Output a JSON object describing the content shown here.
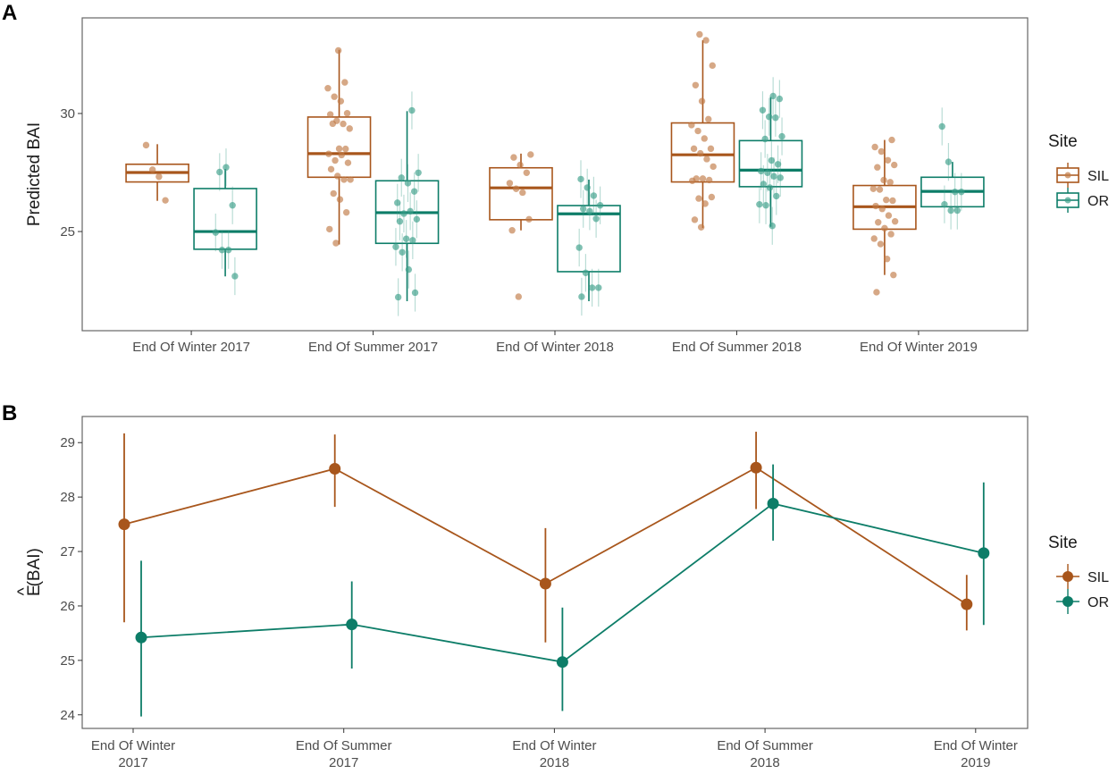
{
  "colors": {
    "SIL": "#a8561c",
    "OR": "#0d7d68",
    "SIL_point": "#c07a45",
    "OR_point": "#3a9e88"
  },
  "chart_data": [
    {
      "panel_label": "A",
      "type": "boxplot",
      "ylabel": "Predicted BAI",
      "xlabel": "",
      "ylim": [
        20.8,
        34.05
      ],
      "yticks": [
        25,
        30
      ],
      "categories": [
        "End Of Winter 2017",
        "End Of Summer 2017",
        "End Of Winter 2018",
        "End Of Summer 2018",
        "End Of Winter 2019"
      ],
      "legend": {
        "title": "Site",
        "entries": [
          "SIL",
          "OR"
        ],
        "placement": "right"
      },
      "series": [
        {
          "name": "SIL",
          "boxes": [
            {
              "min": 26.3,
              "q1": 27.1,
              "median": 27.5,
              "q3": 27.85,
              "max": 28.7,
              "points": [
                28.66,
                27.62,
                27.32,
                26.32
              ]
            },
            {
              "min": 24.45,
              "q1": 27.3,
              "median": 28.3,
              "q3": 29.85,
              "max": 32.7,
              "points": [
                32.67,
                31.32,
                31.07,
                30.71,
                30.52,
                30.01,
                29.96,
                29.69,
                29.56,
                29.36,
                29.57,
                28.51,
                28.5,
                28.29,
                28.01,
                28.24,
                27.91,
                27.64,
                27.35,
                27.2,
                27.2,
                26.61,
                26.36,
                25.81,
                25.1,
                24.51
              ]
            },
            {
              "min": 25.05,
              "q1": 25.5,
              "median": 26.85,
              "q3": 27.7,
              "max": 28.3,
              "points": [
                28.26,
                28.14,
                27.82,
                27.49,
                27.05,
                26.81,
                26.65,
                25.52,
                25.05,
                22.24
              ]
            },
            {
              "min": 25.15,
              "q1": 27.1,
              "median": 28.25,
              "q3": 29.6,
              "max": 33.1,
              "points": [
                33.35,
                33.1,
                32.03,
                31.2,
                30.52,
                29.76,
                29.51,
                29.26,
                28.94,
                28.51,
                28.51,
                28.31,
                28.07,
                27.75,
                27.24,
                27.24,
                27.18,
                27.15,
                26.4,
                26.18,
                26.46,
                25.5,
                25.18
              ]
            },
            {
              "min": 23.16,
              "q1": 25.1,
              "median": 26.05,
              "q3": 26.95,
              "max": 28.88,
              "points": [
                28.88,
                28.58,
                28.39,
                28.02,
                27.82,
                27.72,
                27.18,
                27.09,
                26.81,
                26.78,
                26.34,
                26.31,
                26.08,
                25.96,
                25.68,
                25.43,
                25.39,
                25.14,
                24.89,
                24.7,
                24.47,
                23.84,
                23.16,
                22.43
              ]
            }
          ]
        },
        {
          "name": "OR",
          "boxes": [
            {
              "min": 23.1,
              "q1": 24.25,
              "median": 25.0,
              "q3": 26.82,
              "max": 27.65,
              "points": [
                27.52,
                27.72,
                26.11,
                24.96,
                24.22,
                24.22,
                23.11
              ]
            },
            {
              "min": 22.05,
              "q1": 24.5,
              "median": 25.8,
              "q3": 27.15,
              "max": 30.1,
              "points": [
                30.13,
                27.49,
                27.28,
                27.05,
                26.7,
                26.22,
                25.76,
                25.86,
                25.52,
                25.43,
                24.69,
                24.63,
                24.35,
                24.12,
                23.39,
                22.41,
                22.22
              ]
            },
            {
              "min": 22.05,
              "q1": 23.3,
              "median": 25.75,
              "q3": 26.1,
              "max": 27.2,
              "points": [
                27.22,
                26.86,
                26.52,
                26.11,
                25.96,
                25.86,
                25.54,
                24.32,
                23.25,
                22.62,
                22.62,
                22.24
              ]
            },
            {
              "min": 25.2,
              "q1": 26.9,
              "median": 27.6,
              "q3": 28.85,
              "max": 30.7,
              "points": [
                30.74,
                30.62,
                30.14,
                29.86,
                29.82,
                29.03,
                28.92,
                28.01,
                27.85,
                27.56,
                27.49,
                27.34,
                27.28,
                27.01,
                26.86,
                26.5,
                26.15,
                26.11,
                25.24
              ]
            },
            {
              "min": 26.05,
              "q1": 26.05,
              "median": 26.7,
              "q3": 27.3,
              "max": 27.95,
              "points": [
                29.45,
                27.95,
                26.68,
                26.68,
                26.15,
                25.89,
                25.89
              ]
            }
          ]
        }
      ]
    },
    {
      "panel_label": "B",
      "type": "line",
      "ylabel_base": "E",
      "ylabel_hat": "^",
      "ylabel_rest": "(BAI)",
      "ylim": [
        23.75,
        29.48
      ],
      "yticks": [
        24,
        25,
        26,
        27,
        28,
        29
      ],
      "categories": [
        [
          "End Of Winter",
          "2017"
        ],
        [
          "End Of Summer",
          "2017"
        ],
        [
          "End Of Winter",
          "2018"
        ],
        [
          "End Of Summer",
          "2018"
        ],
        [
          "End Of Winter",
          "2019"
        ]
      ],
      "legend": {
        "title": "Site",
        "entries": [
          "SIL",
          "OR"
        ],
        "placement": "right"
      },
      "series": [
        {
          "name": "SIL",
          "values": [
            27.5,
            28.52,
            26.41,
            28.54,
            26.03
          ],
          "lower": [
            25.7,
            27.82,
            25.33,
            27.78,
            25.55
          ],
          "upper": [
            29.17,
            29.15,
            27.43,
            29.2,
            26.57
          ]
        },
        {
          "name": "OR",
          "values": [
            25.42,
            25.66,
            24.97,
            27.88,
            26.97
          ],
          "lower": [
            23.97,
            24.85,
            24.07,
            27.2,
            25.65
          ],
          "upper": [
            26.83,
            26.45,
            25.97,
            28.6,
            28.27
          ]
        }
      ]
    }
  ]
}
